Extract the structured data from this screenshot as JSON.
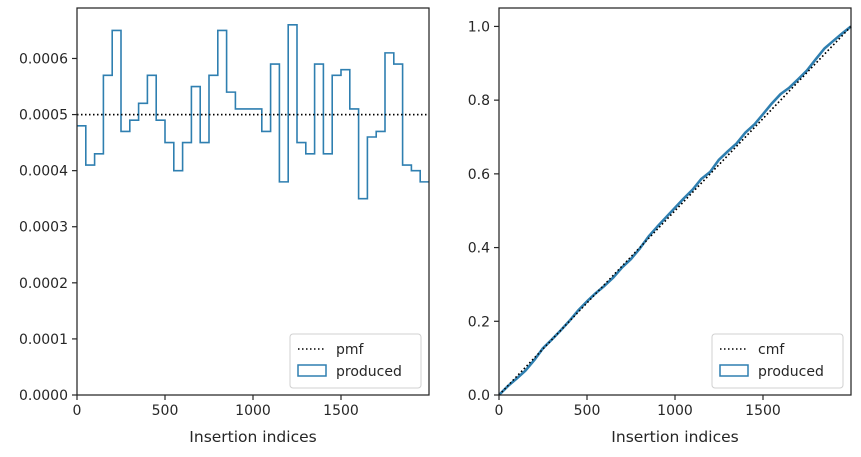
{
  "chart_data": [
    {
      "type": "line",
      "xlabel": "Insertion indices",
      "ylabel": "",
      "xlim": [
        0,
        2000
      ],
      "ylim": [
        0,
        0.00069
      ],
      "xticks": [
        "0",
        "500",
        "1000",
        "1500"
      ],
      "yticks": [
        "0.0000",
        "0.0001",
        "0.0002",
        "0.0003",
        "0.0004",
        "0.0005",
        "0.0006"
      ],
      "legend_position": "lower-right",
      "series": [
        {
          "name": "pmf",
          "style": "dotted",
          "color": "#000000",
          "x": [
            0,
            2000
          ],
          "values": [
            0.0005,
            0.0005
          ]
        },
        {
          "name": "produced",
          "style": "step",
          "color": "#2f7fb0",
          "bin_edges": [
            0,
            50,
            100,
            150,
            200,
            250,
            300,
            350,
            400,
            450,
            500,
            550,
            600,
            650,
            700,
            750,
            800,
            850,
            900,
            950,
            1000,
            1050,
            1100,
            1150,
            1200,
            1250,
            1300,
            1350,
            1400,
            1450,
            1500,
            1550,
            1600,
            1650,
            1700,
            1750,
            1800,
            1850,
            1900,
            1950,
            2000
          ],
          "values": [
            0.00048,
            0.00041,
            0.00043,
            0.00057,
            0.00065,
            0.00047,
            0.00049,
            0.00052,
            0.00057,
            0.00049,
            0.00045,
            0.0004,
            0.00045,
            0.00055,
            0.00045,
            0.00057,
            0.00065,
            0.00054,
            0.00051,
            0.00051,
            0.00051,
            0.00047,
            0.00059,
            0.00038,
            0.00066,
            0.00045,
            0.00043,
            0.00059,
            0.00043,
            0.00057,
            0.00058,
            0.00051,
            0.00035,
            0.00046,
            0.00047,
            0.00061,
            0.00059,
            0.00041,
            0.0004,
            0.00038
          ]
        }
      ]
    },
    {
      "type": "line",
      "xlabel": "Insertion indices",
      "ylabel": "",
      "xlim": [
        0,
        2000
      ],
      "ylim": [
        0,
        1.05
      ],
      "xticks": [
        "0",
        "500",
        "1000",
        "1500"
      ],
      "yticks": [
        "0.0",
        "0.2",
        "0.4",
        "0.6",
        "0.8",
        "1.0"
      ],
      "legend_position": "lower-right",
      "series": [
        {
          "name": "cmf",
          "style": "dotted",
          "color": "#000000",
          "x": [
            0,
            2000
          ],
          "values": [
            0,
            1
          ]
        },
        {
          "name": "produced",
          "style": "line",
          "color": "#2f7fb0",
          "x": [
            0,
            50,
            100,
            150,
            200,
            250,
            300,
            350,
            400,
            450,
            500,
            550,
            600,
            650,
            700,
            750,
            800,
            850,
            900,
            950,
            1000,
            1050,
            1100,
            1150,
            1200,
            1250,
            1300,
            1350,
            1400,
            1450,
            1500,
            1550,
            1600,
            1650,
            1700,
            1750,
            1800,
            1850,
            1900,
            1950,
            2000
          ],
          "values": [
            0,
            0.024,
            0.0445,
            0.066,
            0.0945,
            0.127,
            0.1505,
            0.175,
            0.201,
            0.2295,
            0.254,
            0.2765,
            0.2965,
            0.319,
            0.3465,
            0.369,
            0.3975,
            0.43,
            0.457,
            0.4825,
            0.508,
            0.5335,
            0.557,
            0.5865,
            0.6055,
            0.6385,
            0.661,
            0.6825,
            0.712,
            0.7335,
            0.762,
            0.791,
            0.8165,
            0.834,
            0.857,
            0.8805,
            0.911,
            0.9405,
            0.961,
            0.981,
            1.0
          ]
        }
      ]
    }
  ]
}
